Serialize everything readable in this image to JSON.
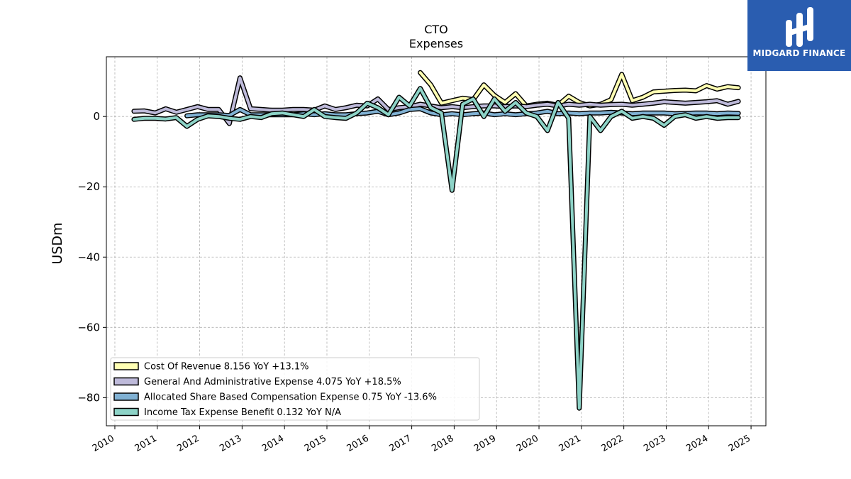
{
  "chart_data": {
    "type": "line",
    "title": "CTO",
    "subtitle": "Expenses",
    "ylabel": "USDm",
    "xlabel": "",
    "xlim": [
      2009.8,
      2025.35
    ],
    "ylim": [
      -88,
      17
    ],
    "yticks": [
      0,
      -20,
      -40,
      -60,
      -80
    ],
    "ytick_labels": [
      "0",
      "−20",
      "−40",
      "−60",
      "−80"
    ],
    "xticks": [
      2010,
      2011,
      2012,
      2013,
      2014,
      2015,
      2016,
      2017,
      2018,
      2019,
      2020,
      2021,
      2022,
      2023,
      2024,
      2025
    ],
    "xtick_labels": [
      "2010",
      "2011",
      "2012",
      "2013",
      "2014",
      "2015",
      "2016",
      "2017",
      "2018",
      "2019",
      "2020",
      "2021",
      "2022",
      "2023",
      "2024",
      "2025"
    ],
    "grid": true,
    "legend_position": "lower-left",
    "series": [
      {
        "name": "Cost Of Revenue  8.156 YoY +13.1%",
        "color": "#ffffb3",
        "points": [
          [
            2017.2,
            12.5
          ],
          [
            2017.45,
            9.0
          ],
          [
            2017.7,
            3.8
          ],
          [
            2017.95,
            4.5
          ],
          [
            2018.2,
            5.2
          ],
          [
            2018.45,
            4.8
          ],
          [
            2018.7,
            9.0
          ],
          [
            2018.95,
            6.0
          ],
          [
            2019.2,
            4.0
          ],
          [
            2019.45,
            6.5
          ],
          [
            2019.7,
            3.0
          ],
          [
            2019.95,
            3.5
          ],
          [
            2020.2,
            3.8
          ],
          [
            2020.45,
            3.2
          ],
          [
            2020.7,
            5.8
          ],
          [
            2020.95,
            4.0
          ],
          [
            2021.2,
            3.0
          ],
          [
            2021.45,
            3.5
          ],
          [
            2021.7,
            4.8
          ],
          [
            2021.95,
            12.0
          ],
          [
            2022.2,
            4.5
          ],
          [
            2022.45,
            5.5
          ],
          [
            2022.7,
            7.0
          ],
          [
            2022.95,
            7.2
          ],
          [
            2023.2,
            7.4
          ],
          [
            2023.45,
            7.5
          ],
          [
            2023.7,
            7.3
          ],
          [
            2023.95,
            8.8
          ],
          [
            2024.2,
            7.8
          ],
          [
            2024.45,
            8.5
          ],
          [
            2024.7,
            8.2
          ]
        ]
      },
      {
        "name": "General And Administrative Expense  4.075 YoY +18.5%",
        "color": "#bebada",
        "points": [
          [
            2010.45,
            1.5
          ],
          [
            2010.7,
            1.6
          ],
          [
            2010.95,
            1.0
          ],
          [
            2011.2,
            2.2
          ],
          [
            2011.45,
            1.2
          ],
          [
            2011.7,
            2.0
          ],
          [
            2011.95,
            2.8
          ],
          [
            2012.2,
            2.0
          ],
          [
            2012.45,
            2.0
          ],
          [
            2012.7,
            -2.0
          ],
          [
            2012.95,
            11.0
          ],
          [
            2013.2,
            2.2
          ],
          [
            2013.45,
            2.0
          ],
          [
            2013.7,
            1.8
          ],
          [
            2013.95,
            1.8
          ],
          [
            2014.2,
            2.0
          ],
          [
            2014.45,
            2.0
          ],
          [
            2014.7,
            1.8
          ],
          [
            2014.95,
            3.0
          ],
          [
            2015.2,
            2.0
          ],
          [
            2015.45,
            2.5
          ],
          [
            2015.7,
            3.2
          ],
          [
            2015.95,
            3.0
          ],
          [
            2016.2,
            5.0
          ],
          [
            2016.45,
            2.0
          ],
          [
            2016.7,
            2.5
          ],
          [
            2016.95,
            2.8
          ],
          [
            2017.2,
            3.5
          ],
          [
            2017.45,
            3.0
          ],
          [
            2017.7,
            2.5
          ],
          [
            2017.95,
            2.8
          ],
          [
            2018.2,
            2.5
          ],
          [
            2018.45,
            2.8
          ],
          [
            2018.7,
            3.0
          ],
          [
            2018.95,
            3.0
          ],
          [
            2019.2,
            2.8
          ],
          [
            2019.45,
            3.0
          ],
          [
            2019.7,
            2.8
          ],
          [
            2019.95,
            3.2
          ],
          [
            2020.2,
            3.5
          ],
          [
            2020.45,
            3.0
          ],
          [
            2020.7,
            3.5
          ],
          [
            2020.95,
            3.2
          ],
          [
            2021.2,
            3.5
          ],
          [
            2021.45,
            3.2
          ],
          [
            2021.7,
            3.4
          ],
          [
            2021.95,
            3.5
          ],
          [
            2022.2,
            3.2
          ],
          [
            2022.45,
            3.5
          ],
          [
            2022.7,
            3.8
          ],
          [
            2022.95,
            4.2
          ],
          [
            2023.2,
            4.0
          ],
          [
            2023.45,
            3.8
          ],
          [
            2023.7,
            4.0
          ],
          [
            2023.95,
            4.2
          ],
          [
            2024.2,
            4.5
          ],
          [
            2024.45,
            3.5
          ],
          [
            2024.7,
            4.3
          ]
        ]
      },
      {
        "name": "Allocated Share Based Compensation Expense  0.75 YoY -13.6%",
        "color": "#80b1d3",
        "points": [
          [
            2011.7,
            0.2
          ],
          [
            2011.95,
            0.5
          ],
          [
            2012.2,
            0.5
          ],
          [
            2012.45,
            0.5
          ],
          [
            2012.7,
            0.3
          ],
          [
            2012.95,
            2.0
          ],
          [
            2013.2,
            0.5
          ],
          [
            2013.45,
            0.5
          ],
          [
            2013.7,
            0.5
          ],
          [
            2013.95,
            0.5
          ],
          [
            2014.2,
            0.5
          ],
          [
            2014.45,
            0.8
          ],
          [
            2014.7,
            0.5
          ],
          [
            2014.95,
            0.8
          ],
          [
            2015.2,
            0.5
          ],
          [
            2015.45,
            0.5
          ],
          [
            2015.7,
            0.8
          ],
          [
            2015.95,
            1.0
          ],
          [
            2016.2,
            1.5
          ],
          [
            2016.45,
            0.5
          ],
          [
            2016.7,
            1.0
          ],
          [
            2016.95,
            2.0
          ],
          [
            2017.2,
            2.2
          ],
          [
            2017.45,
            1.0
          ],
          [
            2017.7,
            0.5
          ],
          [
            2017.95,
            0.8
          ],
          [
            2018.2,
            0.5
          ],
          [
            2018.45,
            0.8
          ],
          [
            2018.7,
            1.0
          ],
          [
            2018.95,
            0.5
          ],
          [
            2019.2,
            0.8
          ],
          [
            2019.45,
            0.5
          ],
          [
            2019.7,
            0.8
          ],
          [
            2019.95,
            1.0
          ],
          [
            2020.2,
            1.5
          ],
          [
            2020.45,
            0.8
          ],
          [
            2020.7,
            1.0
          ],
          [
            2020.95,
            0.8
          ],
          [
            2021.2,
            1.0
          ],
          [
            2021.45,
            1.0
          ],
          [
            2021.7,
            1.2
          ],
          [
            2021.95,
            1.0
          ],
          [
            2022.2,
            0.8
          ],
          [
            2022.45,
            1.0
          ],
          [
            2022.7,
            1.0
          ],
          [
            2022.95,
            1.0
          ],
          [
            2023.2,
            0.8
          ],
          [
            2023.45,
            0.9
          ],
          [
            2023.7,
            1.0
          ],
          [
            2023.95,
            1.0
          ],
          [
            2024.2,
            0.8
          ],
          [
            2024.45,
            1.0
          ],
          [
            2024.7,
            0.9
          ]
        ]
      },
      {
        "name": "Income Tax Expense Benefit  0.132 YoY N/A",
        "color": "#8dd3c7",
        "points": [
          [
            2010.45,
            -0.8
          ],
          [
            2010.7,
            -0.5
          ],
          [
            2010.95,
            -0.5
          ],
          [
            2011.2,
            -0.7
          ],
          [
            2011.45,
            -0.3
          ],
          [
            2011.7,
            -2.8
          ],
          [
            2011.95,
            -0.8
          ],
          [
            2012.2,
            0.2
          ],
          [
            2012.45,
            0.0
          ],
          [
            2012.7,
            -0.5
          ],
          [
            2012.95,
            -0.8
          ],
          [
            2013.2,
            0.0
          ],
          [
            2013.45,
            -0.3
          ],
          [
            2013.7,
            0.8
          ],
          [
            2013.95,
            1.0
          ],
          [
            2014.2,
            0.5
          ],
          [
            2014.45,
            0.0
          ],
          [
            2014.7,
            2.0
          ],
          [
            2014.95,
            0.0
          ],
          [
            2015.2,
            -0.3
          ],
          [
            2015.45,
            -0.5
          ],
          [
            2015.7,
            1.0
          ],
          [
            2015.95,
            3.8
          ],
          [
            2016.2,
            2.5
          ],
          [
            2016.45,
            0.5
          ],
          [
            2016.7,
            5.5
          ],
          [
            2016.95,
            3.0
          ],
          [
            2017.2,
            8.0
          ],
          [
            2017.45,
            2.5
          ],
          [
            2017.7,
            1.0
          ],
          [
            2017.95,
            -21.0
          ],
          [
            2018.2,
            3.5
          ],
          [
            2018.45,
            5.0
          ],
          [
            2018.7,
            0.0
          ],
          [
            2018.95,
            5.0
          ],
          [
            2019.2,
            1.5
          ],
          [
            2019.45,
            4.0
          ],
          [
            2019.7,
            1.0
          ],
          [
            2019.95,
            0.0
          ],
          [
            2020.2,
            -4.0
          ],
          [
            2020.45,
            4.0
          ],
          [
            2020.7,
            -0.5
          ],
          [
            2020.95,
            -83.0
          ],
          [
            2021.2,
            0.0
          ],
          [
            2021.45,
            -4.0
          ],
          [
            2021.7,
            0.0
          ],
          [
            2021.95,
            1.5
          ],
          [
            2022.2,
            -0.5
          ],
          [
            2022.45,
            0.0
          ],
          [
            2022.7,
            -0.5
          ],
          [
            2022.95,
            -2.5
          ],
          [
            2023.2,
            0.0
          ],
          [
            2023.45,
            0.5
          ],
          [
            2023.7,
            -0.5
          ],
          [
            2023.95,
            0.0
          ],
          [
            2024.2,
            -0.5
          ],
          [
            2024.45,
            -0.3
          ],
          [
            2024.7,
            -0.3
          ]
        ]
      }
    ]
  },
  "brand": {
    "name": "MIDGARD FINANCE",
    "color": "#2a5db0",
    "icon": "midgard-finance-logo-icon"
  }
}
